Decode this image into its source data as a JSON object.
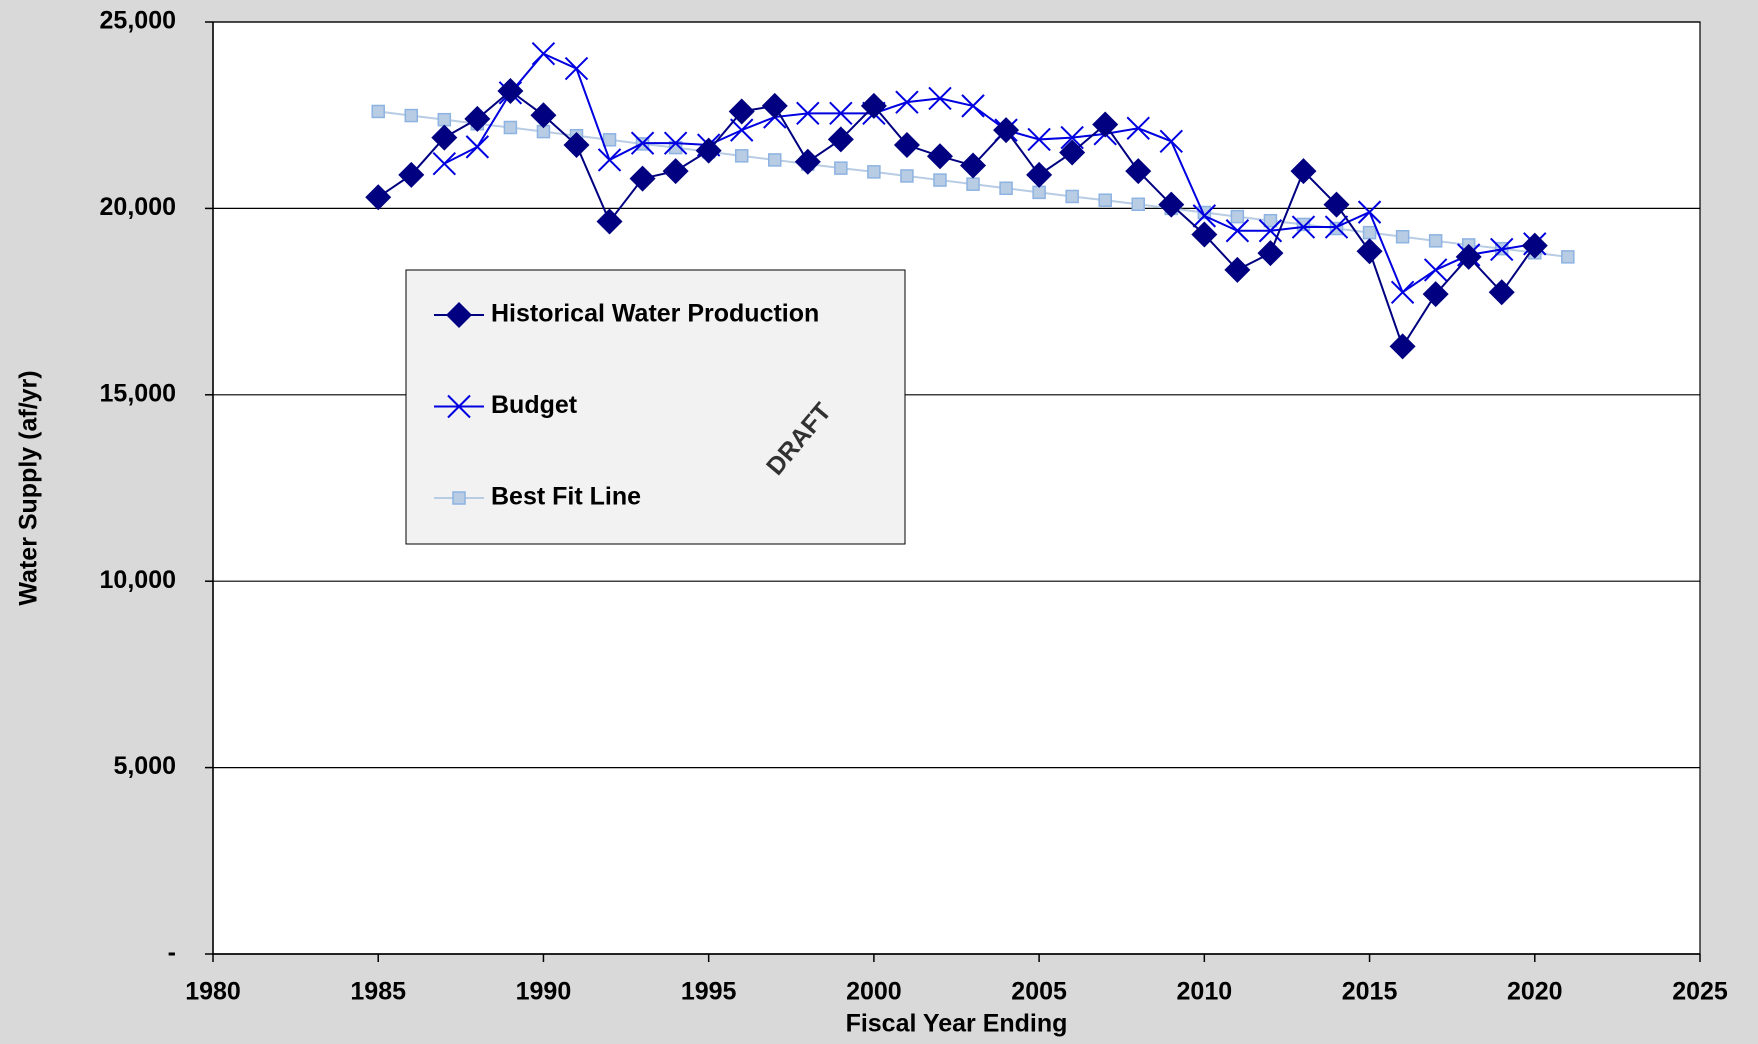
{
  "chart_data": {
    "type": "line",
    "x_label": "Fiscal Year Ending",
    "y_label": "Water Supply (af/yr)",
    "watermark": "DRAFT",
    "xlim": [
      1980,
      2025
    ],
    "xticks": [
      1980,
      1985,
      1990,
      1995,
      2000,
      2005,
      2010,
      2015,
      2020,
      2025
    ],
    "ylim": [
      0,
      25000
    ],
    "yticks": [
      {
        "value": 0,
        "label": "-"
      },
      {
        "value": 5000,
        "label": "5,000"
      },
      {
        "value": 10000,
        "label": "10,000"
      },
      {
        "value": 15000,
        "label": "15,000"
      },
      {
        "value": 20000,
        "label": "20,000"
      },
      {
        "value": 25000,
        "label": "25,000"
      }
    ],
    "grid": true,
    "legend": "upper left",
    "series": [
      {
        "name": "Historical Water Production",
        "color": "#000080",
        "marker": "diamond",
        "x": [
          1985,
          1986,
          1987,
          1988,
          1989,
          1990,
          1991,
          1992,
          1993,
          1994,
          1995,
          1996,
          1997,
          1998,
          1999,
          2000,
          2001,
          2002,
          2003,
          2004,
          2005,
          2006,
          2007,
          2008,
          2009,
          2010,
          2011,
          2012,
          2013,
          2014,
          2015,
          2016,
          2017,
          2018,
          2019,
          2020
        ],
        "values": [
          20300,
          20900,
          21900,
          22400,
          23150,
          22500,
          21700,
          19650,
          20800,
          21000,
          21550,
          22600,
          22750,
          21250,
          21850,
          22750,
          21700,
          21400,
          21150,
          22100,
          20900,
          21500,
          22250,
          21000,
          20100,
          19300,
          18350,
          18800,
          21000,
          20100,
          18850,
          16300,
          17700,
          18700,
          17750,
          19000
        ]
      },
      {
        "name": "Budget",
        "color": "#0000e0",
        "marker": "x",
        "x": [
          1987,
          1988,
          1989,
          1990,
          1991,
          1992,
          1993,
          1994,
          1995,
          1996,
          1997,
          1998,
          1999,
          2000,
          2001,
          2002,
          2003,
          2004,
          2005,
          2006,
          2007,
          2008,
          2009,
          2010,
          2011,
          2012,
          2013,
          2014,
          2015,
          2016,
          2017,
          2018,
          2019,
          2020
        ],
        "values": [
          21200,
          21650,
          23100,
          24150,
          23750,
          21300,
          21750,
          21750,
          21700,
          22100,
          22450,
          22550,
          22550,
          22550,
          22850,
          22950,
          22750,
          22100,
          21850,
          21900,
          22000,
          22150,
          21800,
          19800,
          19400,
          19400,
          19500,
          19500,
          19900,
          17750,
          18350,
          18750,
          18900,
          19050
        ]
      },
      {
        "name": "Best Fit Line",
        "color": "#b8cce4",
        "marker": "square",
        "x": [
          1985,
          1986,
          1987,
          1988,
          1989,
          1990,
          1991,
          1992,
          1993,
          1994,
          1995,
          1996,
          1997,
          1998,
          1999,
          2000,
          2001,
          2002,
          2003,
          2004,
          2005,
          2006,
          2007,
          2008,
          2009,
          2010,
          2011,
          2012,
          2013,
          2014,
          2015,
          2016,
          2017,
          2018,
          2019,
          2020,
          2021
        ],
        "values": [
          22600,
          22490,
          22380,
          22270,
          22170,
          22060,
          21950,
          21840,
          21730,
          21630,
          21520,
          21410,
          21300,
          21190,
          21080,
          20980,
          20870,
          20760,
          20650,
          20540,
          20430,
          20320,
          20220,
          20110,
          20000,
          19890,
          19780,
          19670,
          19570,
          19460,
          19350,
          19240,
          19130,
          19020,
          18920,
          18810,
          18700
        ]
      }
    ]
  }
}
